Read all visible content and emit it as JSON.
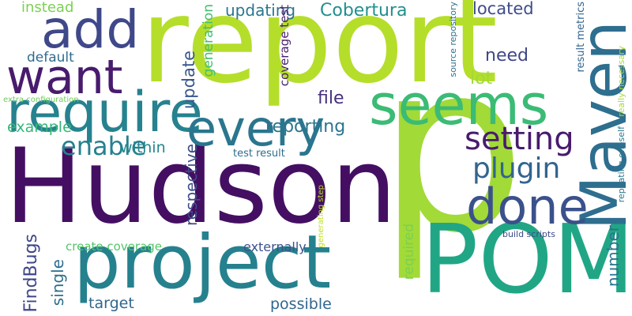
{
  "words": [
    {
      "text": "Hudson",
      "color": "#440f62"
    },
    {
      "text": "report",
      "color": "#b5de2b"
    },
    {
      "text": "p",
      "color": "#a2da37"
    },
    {
      "text": "POM",
      "color": "#21a685"
    },
    {
      "text": "project",
      "color": "#26818e"
    },
    {
      "text": "Maven",
      "color": "#2e6e8e"
    },
    {
      "text": "require",
      "color": "#26828e"
    },
    {
      "text": "every",
      "color": "#2a768e"
    },
    {
      "text": "seems",
      "color": "#3bbb75"
    },
    {
      "text": "add",
      "color": "#3f4889"
    },
    {
      "text": "want",
      "color": "#481b6d"
    },
    {
      "text": "done",
      "color": "#3b518b"
    },
    {
      "text": "setting",
      "color": "#481b6d"
    },
    {
      "text": "plugin",
      "color": "#32658e"
    },
    {
      "text": "enable",
      "color": "#26818e"
    },
    {
      "text": "reporting",
      "color": "#2b758e"
    },
    {
      "text": "Cobertura",
      "color": "#21908d"
    },
    {
      "text": "file",
      "color": "#472f7d"
    },
    {
      "text": "example",
      "color": "#35b779"
    },
    {
      "text": "within",
      "color": "#25858e"
    },
    {
      "text": "lot",
      "color": "#a0da39"
    },
    {
      "text": "need",
      "color": "#3f4788"
    },
    {
      "text": "default",
      "color": "#306a8e"
    },
    {
      "text": "instead",
      "color": "#7ad151"
    },
    {
      "text": "located",
      "color": "#3e4c8a"
    },
    {
      "text": "updating",
      "color": "#2a768e"
    },
    {
      "text": "target",
      "color": "#31668e"
    },
    {
      "text": "possible",
      "color": "#31668e"
    },
    {
      "text": "externally",
      "color": "#3b528b"
    },
    {
      "text": "single",
      "color": "#2e6f8e"
    },
    {
      "text": "FindBugs",
      "color": "#3f4788"
    },
    {
      "text": "update",
      "color": "#39568c"
    },
    {
      "text": "generation",
      "color": "#44bf70"
    },
    {
      "text": "respective",
      "color": "#3d4d8a"
    },
    {
      "text": "coverage test",
      "color": "#481f70"
    },
    {
      "text": "number",
      "color": "#2b748e"
    },
    {
      "text": "required",
      "color": "#7ad151"
    },
    {
      "text": "create coverage",
      "color": "#52c569"
    },
    {
      "text": "test result",
      "color": "#2e6e8e"
    },
    {
      "text": "source repository",
      "color": "#2d718e"
    },
    {
      "text": "result metrics",
      "color": "#32648e"
    },
    {
      "text": "repeating oneself",
      "color": "#2a788e"
    },
    {
      "text": "really necessary",
      "color": "#a5db36"
    },
    {
      "text": "build scripts",
      "color": "#3e4a89"
    },
    {
      "text": "generating step",
      "color": "#bddf26"
    },
    {
      "text": "extra configuration",
      "color": "#6ece58"
    }
  ]
}
